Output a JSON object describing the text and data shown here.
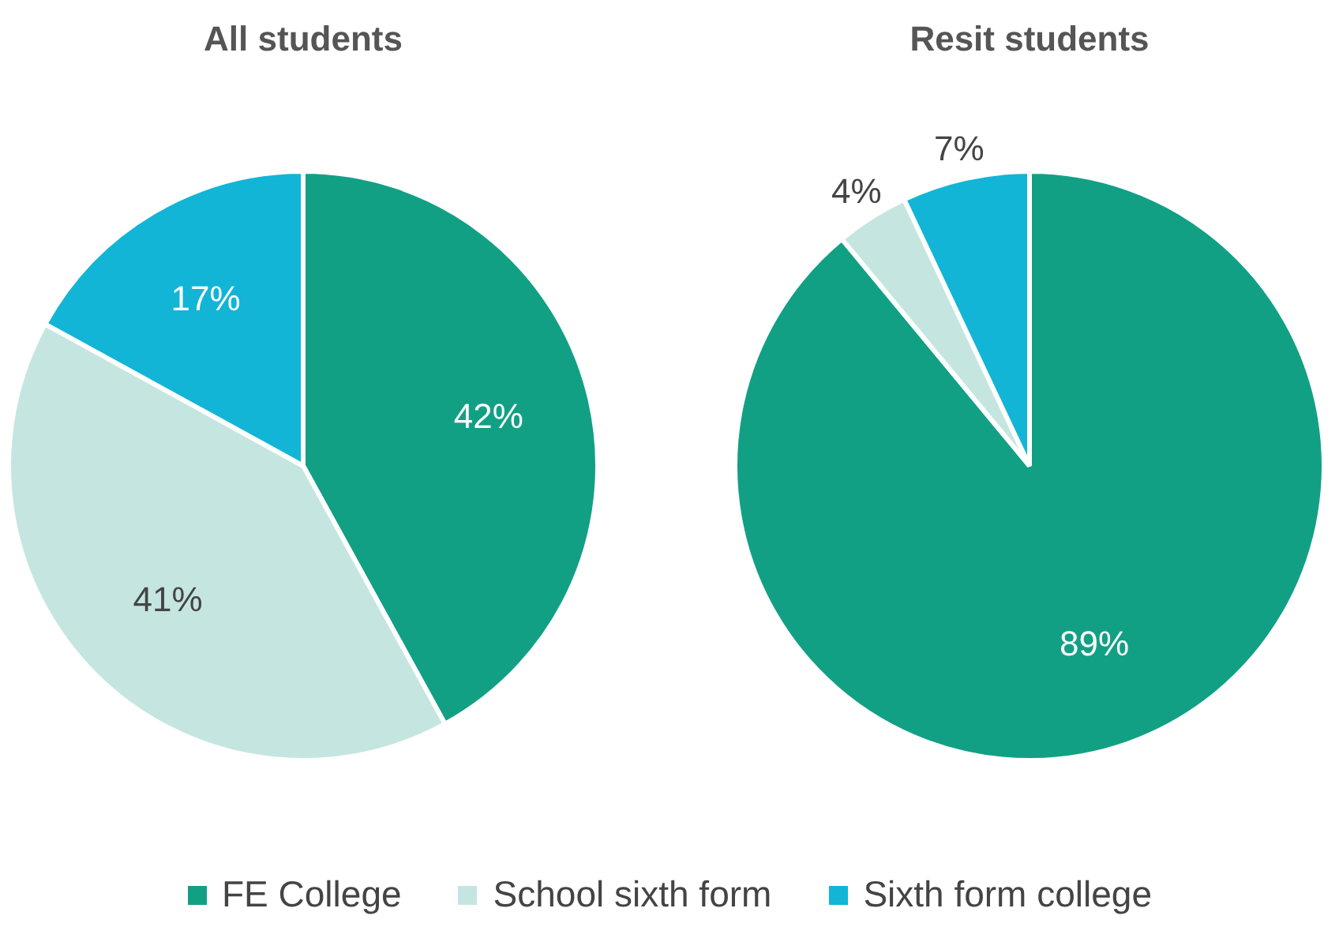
{
  "chart_data": [
    {
      "type": "pie",
      "title": "All students",
      "categories": [
        "FE College",
        "School sixth form",
        "Sixth form college"
      ],
      "values": [
        42,
        41,
        17
      ],
      "colors": [
        "#12a085",
        "#c5e6e0",
        "#12b5d6"
      ],
      "value_labels": [
        "42%",
        "41%",
        "17%"
      ],
      "legend": "bottom"
    },
    {
      "type": "pie",
      "title": "Resit students",
      "categories": [
        null,
        null,
        null
      ],
      "values": [
        89,
        4,
        7
      ],
      "colors": [
        "#12a085",
        "#c5e6e0",
        "#12b5d6"
      ],
      "value_labels": [
        "89%",
        "4%",
        "7%"
      ]
    }
  ]
}
